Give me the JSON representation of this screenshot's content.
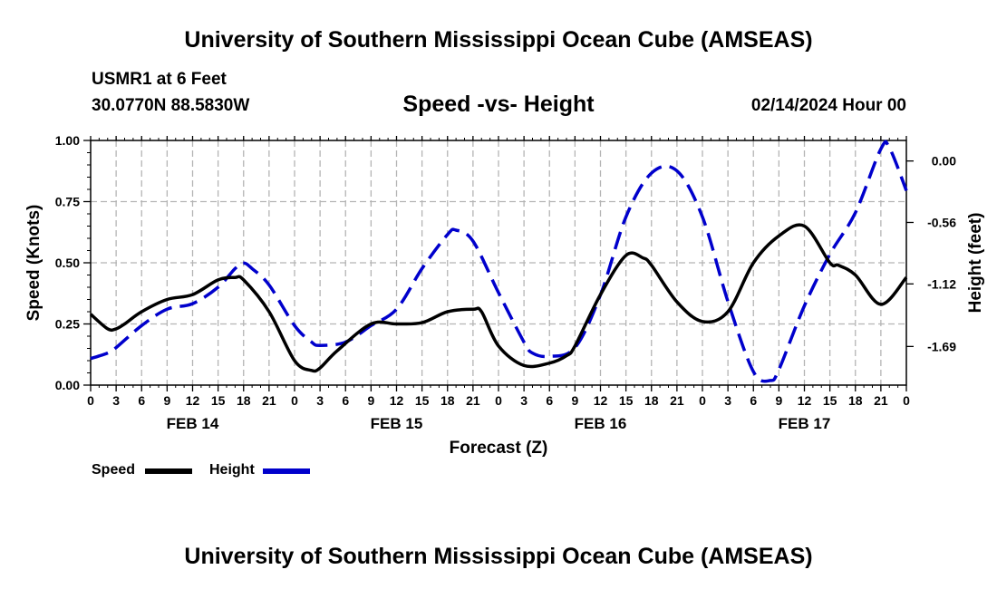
{
  "header": {
    "title": "University of Southern Mississippi Ocean Cube (AMSEAS)",
    "station": "USMR1 at 6 Feet",
    "coords": "30.0770N  88.5830W",
    "subtitle": "Speed -vs- Height",
    "date": "02/14/2024 Hour 00"
  },
  "footer": {
    "title": "University of Southern Mississippi Ocean Cube (AMSEAS)"
  },
  "legend": {
    "speed_label": "Speed",
    "height_label": "Height",
    "speed_color": "#000000",
    "height_color": "#0000cc"
  },
  "chart_data": {
    "type": "line",
    "title": "Speed -vs- Height",
    "xlabel": "Forecast (Z)",
    "ylabel": "Speed (Knots)",
    "y2label": "Height (feet)",
    "xlim": [
      0,
      96
    ],
    "ylim": [
      0,
      1
    ],
    "y2lim": [
      -2.042,
      0.187
    ],
    "x_tick_labels": [
      "0",
      "3",
      "6",
      "9",
      "12",
      "15",
      "18",
      "21",
      "0",
      "3",
      "6",
      "9",
      "12",
      "15",
      "18",
      "21",
      "0",
      "3",
      "6",
      "9",
      "12",
      "15",
      "18",
      "21",
      "0",
      "3",
      "6",
      "9",
      "12",
      "15",
      "18",
      "21",
      "0"
    ],
    "day_labels": [
      {
        "label": "FEB 14",
        "x": 12
      },
      {
        "label": "FEB 15",
        "x": 36
      },
      {
        "label": "FEB 16",
        "x": 60
      },
      {
        "label": "FEB 17",
        "x": 84
      }
    ],
    "y_ticks": [
      0,
      0.25,
      0.5,
      0.75,
      1.0
    ],
    "y_tick_labels": [
      "0.00",
      "0.25",
      "0.50",
      "0.75",
      "1.00"
    ],
    "y2_ticks": [
      0,
      -0.56,
      -1.12,
      -1.69
    ],
    "y2_tick_labels": [
      "0.00",
      "-0.56",
      "-1.12",
      "-1.69"
    ],
    "grid": true,
    "series": [
      {
        "name": "Speed",
        "axis": "left",
        "style": "solid",
        "color": "#000000",
        "x": [
          0,
          2,
          3,
          4,
          6,
          9,
          12,
          15,
          17,
          18,
          21,
          24,
          26,
          27,
          29,
          33,
          36,
          39,
          42,
          45,
          46,
          48,
          51,
          54,
          56,
          57,
          60,
          63,
          65,
          66,
          69,
          72,
          75,
          78,
          81,
          84,
          87,
          88,
          90,
          93,
          96
        ],
        "values": [
          0.29,
          0.23,
          0.23,
          0.25,
          0.3,
          0.35,
          0.37,
          0.43,
          0.44,
          0.43,
          0.3,
          0.1,
          0.06,
          0.07,
          0.14,
          0.25,
          0.25,
          0.255,
          0.3,
          0.31,
          0.3,
          0.16,
          0.08,
          0.09,
          0.12,
          0.16,
          0.37,
          0.53,
          0.52,
          0.49,
          0.34,
          0.26,
          0.3,
          0.5,
          0.61,
          0.65,
          0.5,
          0.49,
          0.45,
          0.33,
          0.44
        ]
      },
      {
        "name": "Height",
        "axis": "right",
        "style": "dashed",
        "color": "#0000cc",
        "x": [
          0,
          2,
          3,
          6,
          9,
          12,
          15,
          17,
          18,
          19,
          21,
          24,
          26,
          27,
          30,
          33,
          36,
          39,
          42,
          43,
          45,
          48,
          51,
          52,
          54,
          57,
          60,
          63,
          66,
          69,
          72,
          75,
          78,
          80,
          81,
          84,
          87,
          90,
          93,
          94,
          96
        ],
        "values": [
          -1.8,
          -1.75,
          -1.7,
          -1.5,
          -1.35,
          -1.3,
          -1.15,
          -0.98,
          -0.93,
          -0.98,
          -1.13,
          -1.5,
          -1.65,
          -1.68,
          -1.65,
          -1.5,
          -1.35,
          -0.98,
          -0.67,
          -0.63,
          -0.73,
          -1.2,
          -1.65,
          -1.75,
          -1.78,
          -1.7,
          -1.22,
          -0.51,
          -0.11,
          -0.09,
          -0.51,
          -1.28,
          -1.92,
          -2.0,
          -1.9,
          -1.32,
          -0.85,
          -0.47,
          0.11,
          0.12,
          -0.27
        ]
      }
    ]
  }
}
